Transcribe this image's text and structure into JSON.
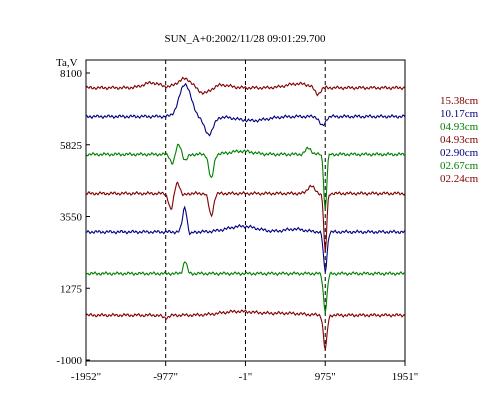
{
  "chart_data": {
    "type": "line",
    "title": "SUN_A+0:2002/11/28 09:01:29.700",
    "ylabel": "Ta,V",
    "xlabel": "",
    "x_ticks": [
      -1952,
      -977,
      -1,
      975,
      1951
    ],
    "x_tick_labels": [
      "-1952\"",
      "-977\"",
      "-1\"",
      "975\"",
      "1951\""
    ],
    "y_ticks": [
      8100,
      5825,
      3550,
      1275,
      -1000
    ],
    "y_tick_labels": [
      "8100",
      "5825",
      "3550",
      "1275",
      "-1000"
    ],
    "xlim": [
      -1952,
      1951
    ],
    "ylim": [
      -1000,
      8100
    ],
    "grid": "vertical dashed at -977, -1, 975",
    "legend_position": "right",
    "series": [
      {
        "name": "15.38cm",
        "color": "#7f0000",
        "baseline": 7630,
        "features": [
          [
            -1150,
            160,
            100
          ],
          [
            -740,
            290,
            90
          ],
          [
            -500,
            -210,
            90
          ],
          [
            -330,
            110,
            120
          ],
          [
            640,
            130,
            140
          ],
          [
            880,
            -230,
            35
          ]
        ]
      },
      {
        "name": "10.17cm",
        "color": "#00007f",
        "baseline": 6720,
        "features": [
          [
            -740,
            1030,
            70
          ],
          [
            -450,
            -560,
            55
          ],
          [
            80,
            -130,
            180
          ],
          [
            940,
            -300,
            35
          ]
        ]
      },
      {
        "name": "04.93cm",
        "color": "#007f00",
        "baseline": 5520,
        "features": [
          [
            -890,
            -320,
            28
          ],
          [
            -820,
            320,
            35
          ],
          [
            -740,
            -220,
            28
          ],
          [
            -420,
            -780,
            28
          ],
          [
            -50,
            100,
            140
          ],
          [
            770,
            200,
            35
          ],
          [
            975,
            -1800,
            18
          ]
        ]
      },
      {
        "name": "04.93cm",
        "color": "#7f0000",
        "baseline": 4280,
        "features": [
          [
            -910,
            -540,
            28
          ],
          [
            -830,
            390,
            35
          ],
          [
            -780,
            -140,
            30
          ],
          [
            -420,
            -700,
            28
          ],
          [
            800,
            240,
            40
          ],
          [
            975,
            -1900,
            18
          ]
        ]
      },
      {
        "name": "02.90cm",
        "color": "#00007f",
        "baseline": 3060,
        "features": [
          [
            -740,
            850,
            28
          ],
          [
            -700,
            -190,
            28
          ],
          [
            -40,
            180,
            180
          ],
          [
            600,
            90,
            120
          ],
          [
            975,
            -1260,
            22
          ]
        ]
      },
      {
        "name": "02.67cm",
        "color": "#007f00",
        "baseline": 1740,
        "features": [
          [
            -740,
            400,
            22
          ],
          [
            975,
            -1200,
            22
          ]
        ]
      },
      {
        "name": "02.24cm",
        "color": "#7f0000",
        "baseline": 420,
        "features": [
          [
            -980,
            -80,
            40
          ],
          [
            -80,
            120,
            220
          ],
          [
            500,
            60,
            200
          ],
          [
            975,
            -1100,
            22
          ]
        ]
      }
    ]
  }
}
